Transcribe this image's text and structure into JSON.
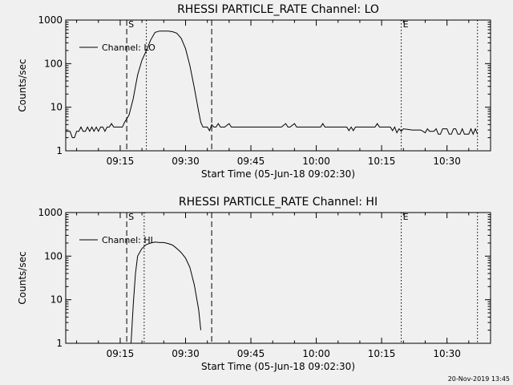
{
  "footer_timestamp": "20-Nov-2019 13:45",
  "chart_data": [
    {
      "type": "line",
      "title": "RHESSI PARTICLE_RATE Channel: LO",
      "xlabel": "Start Time (05-Jun-18 09:02:30)",
      "ylabel": "Counts/sec",
      "xlim": [
        "09:02:30",
        "10:40:00"
      ],
      "ylim": [
        1,
        1000
      ],
      "yscale": "log",
      "x_ticks": [
        "09:15",
        "09:30",
        "09:45",
        "10:00",
        "10:15",
        "10:30"
      ],
      "y_ticks": [
        "1",
        "10",
        "100",
        "1000"
      ],
      "legend": {
        "label": "Channel: LO",
        "placement": "top-left"
      },
      "markers": [
        {
          "time": "09:16:30",
          "style": "dashed",
          "label": "S"
        },
        {
          "time": "09:21:00",
          "style": "dotted",
          "label": ""
        },
        {
          "time": "09:36:00",
          "style": "dashed",
          "label": ""
        },
        {
          "time": "10:19:30",
          "style": "dotted",
          "label": "E"
        },
        {
          "time": "10:37:00",
          "style": "dotted",
          "label": ""
        }
      ],
      "series": [
        {
          "name": "Channel: LO",
          "points": [
            [
              "09:02:30",
              2.8
            ],
            [
              "09:03:30",
              2.8
            ],
            [
              "09:04:00",
              2.0
            ],
            [
              "09:04:30",
              2.0
            ],
            [
              "09:05:00",
              2.8
            ],
            [
              "09:05:30",
              2.8
            ],
            [
              "09:06:00",
              3.5
            ],
            [
              "09:06:30",
              2.8
            ],
            [
              "09:07:00",
              2.8
            ],
            [
              "09:07:30",
              3.5
            ],
            [
              "09:08:00",
              2.8
            ],
            [
              "09:08:30",
              3.5
            ],
            [
              "09:09:00",
              2.8
            ],
            [
              "09:09:30",
              3.5
            ],
            [
              "09:10:00",
              2.8
            ],
            [
              "09:10:30",
              3.5
            ],
            [
              "09:11:00",
              3.5
            ],
            [
              "09:11:30",
              2.8
            ],
            [
              "09:12:00",
              3.5
            ],
            [
              "09:12:30",
              3.5
            ],
            [
              "09:13:00",
              4.2
            ],
            [
              "09:13:30",
              3.5
            ],
            [
              "09:14:00",
              3.5
            ],
            [
              "09:15:00",
              3.5
            ],
            [
              "09:15:30",
              3.5
            ],
            [
              "09:16:00",
              4.5
            ],
            [
              "09:17:00",
              6.5
            ],
            [
              "09:17:30",
              10
            ],
            [
              "09:18:00",
              16
            ],
            [
              "09:18:30",
              30
            ],
            [
              "09:19:00",
              55
            ],
            [
              "09:20:00",
              120
            ],
            [
              "09:21:00",
              200
            ],
            [
              "09:22:00",
              350
            ],
            [
              "09:23:00",
              520
            ],
            [
              "09:24:00",
              560
            ],
            [
              "09:25:00",
              560
            ],
            [
              "09:26:00",
              560
            ],
            [
              "09:27:00",
              540
            ],
            [
              "09:28:00",
              500
            ],
            [
              "09:29:00",
              380
            ],
            [
              "09:30:00",
              220
            ],
            [
              "09:31:00",
              90
            ],
            [
              "09:32:00",
              28
            ],
            [
              "09:33:00",
              8
            ],
            [
              "09:33:30",
              4.5
            ],
            [
              "09:34:00",
              3.5
            ],
            [
              "09:35:00",
              3.5
            ],
            [
              "09:35:30",
              2.9
            ],
            [
              "09:36:00",
              4.0
            ],
            [
              "09:36:30",
              3.5
            ],
            [
              "09:37:00",
              3.5
            ],
            [
              "09:37:30",
              4.2
            ],
            [
              "09:38:00",
              3.5
            ],
            [
              "09:39:00",
              3.5
            ],
            [
              "09:40:00",
              4.2
            ],
            [
              "09:40:30",
              3.5
            ],
            [
              "09:41:00",
              3.5
            ],
            [
              "09:45:00",
              3.5
            ],
            [
              "09:50:00",
              3.5
            ],
            [
              "09:52:00",
              3.5
            ],
            [
              "09:53:00",
              4.2
            ],
            [
              "09:53:30",
              3.5
            ],
            [
              "09:54:00",
              3.5
            ],
            [
              "09:55:00",
              4.2
            ],
            [
              "09:55:30",
              3.5
            ],
            [
              "10:01:00",
              3.5
            ],
            [
              "10:01:30",
              4.2
            ],
            [
              "10:02:00",
              3.5
            ],
            [
              "10:07:00",
              3.5
            ],
            [
              "10:07:30",
              2.9
            ],
            [
              "10:08:00",
              3.5
            ],
            [
              "10:08:30",
              2.9
            ],
            [
              "10:09:00",
              3.5
            ],
            [
              "10:13:30",
              3.5
            ],
            [
              "10:14:00",
              4.2
            ],
            [
              "10:14:30",
              3.5
            ],
            [
              "10:17:00",
              3.5
            ],
            [
              "10:17:30",
              2.9
            ],
            [
              "10:18:00",
              3.5
            ],
            [
              "10:18:30",
              2.6
            ],
            [
              "10:19:00",
              3.2
            ],
            [
              "10:19:30",
              2.8
            ],
            [
              "10:20:00",
              3.2
            ],
            [
              "10:22:00",
              3.0
            ],
            [
              "10:24:00",
              3.0
            ],
            [
              "10:25:00",
              2.6
            ],
            [
              "10:25:30",
              3.2
            ],
            [
              "10:26:00",
              2.8
            ],
            [
              "10:27:00",
              2.8
            ],
            [
              "10:27:30",
              3.2
            ],
            [
              "10:28:00",
              2.4
            ],
            [
              "10:28:30",
              2.4
            ],
            [
              "10:29:00",
              3.2
            ],
            [
              "10:30:00",
              3.2
            ],
            [
              "10:30:30",
              2.4
            ],
            [
              "10:31:00",
              2.4
            ],
            [
              "10:31:30",
              3.2
            ],
            [
              "10:32:00",
              3.2
            ],
            [
              "10:32:30",
              2.4
            ],
            [
              "10:33:00",
              2.4
            ],
            [
              "10:33:30",
              3.2
            ],
            [
              "10:34:00",
              2.4
            ],
            [
              "10:35:00",
              2.4
            ],
            [
              "10:35:30",
              3.2
            ],
            [
              "10:36:00",
              2.4
            ],
            [
              "10:36:30",
              3.2
            ],
            [
              "10:37:00",
              2.4
            ]
          ]
        }
      ]
    },
    {
      "type": "line",
      "title": "RHESSI PARTICLE_RATE Channel: HI",
      "xlabel": "Start Time (05-Jun-18 09:02:30)",
      "ylabel": "Counts/sec",
      "xlim": [
        "09:02:30",
        "10:40:00"
      ],
      "ylim": [
        1,
        1000
      ],
      "yscale": "log",
      "x_ticks": [
        "09:15",
        "09:30",
        "09:45",
        "10:00",
        "10:15",
        "10:30"
      ],
      "y_ticks": [
        "1",
        "10",
        "100",
        "1000"
      ],
      "legend": {
        "label": "Channel: HI",
        "placement": "top-left"
      },
      "markers": [
        {
          "time": "09:16:30",
          "style": "dashed",
          "label": "S"
        },
        {
          "time": "09:20:30",
          "style": "dotted",
          "label": ""
        },
        {
          "time": "09:36:00",
          "style": "dashed",
          "label": ""
        },
        {
          "time": "10:19:30",
          "style": "dotted",
          "label": "E"
        },
        {
          "time": "10:37:00",
          "style": "dotted",
          "label": ""
        }
      ],
      "series": [
        {
          "name": "Channel: HI",
          "points": [
            [
              "09:17:30",
              1.0
            ],
            [
              "09:18:00",
              8
            ],
            [
              "09:18:30",
              40
            ],
            [
              "09:19:00",
              100
            ],
            [
              "09:20:00",
              150
            ],
            [
              "09:21:00",
              185
            ],
            [
              "09:22:00",
              200
            ],
            [
              "09:23:00",
              210
            ],
            [
              "09:24:00",
              205
            ],
            [
              "09:25:00",
              205
            ],
            [
              "09:26:00",
              195
            ],
            [
              "09:27:00",
              180
            ],
            [
              "09:28:00",
              150
            ],
            [
              "09:29:00",
              120
            ],
            [
              "09:30:00",
              90
            ],
            [
              "09:31:00",
              55
            ],
            [
              "09:32:00",
              22
            ],
            [
              "09:33:00",
              6
            ],
            [
              "09:33:30",
              2.0
            ]
          ]
        }
      ]
    }
  ]
}
